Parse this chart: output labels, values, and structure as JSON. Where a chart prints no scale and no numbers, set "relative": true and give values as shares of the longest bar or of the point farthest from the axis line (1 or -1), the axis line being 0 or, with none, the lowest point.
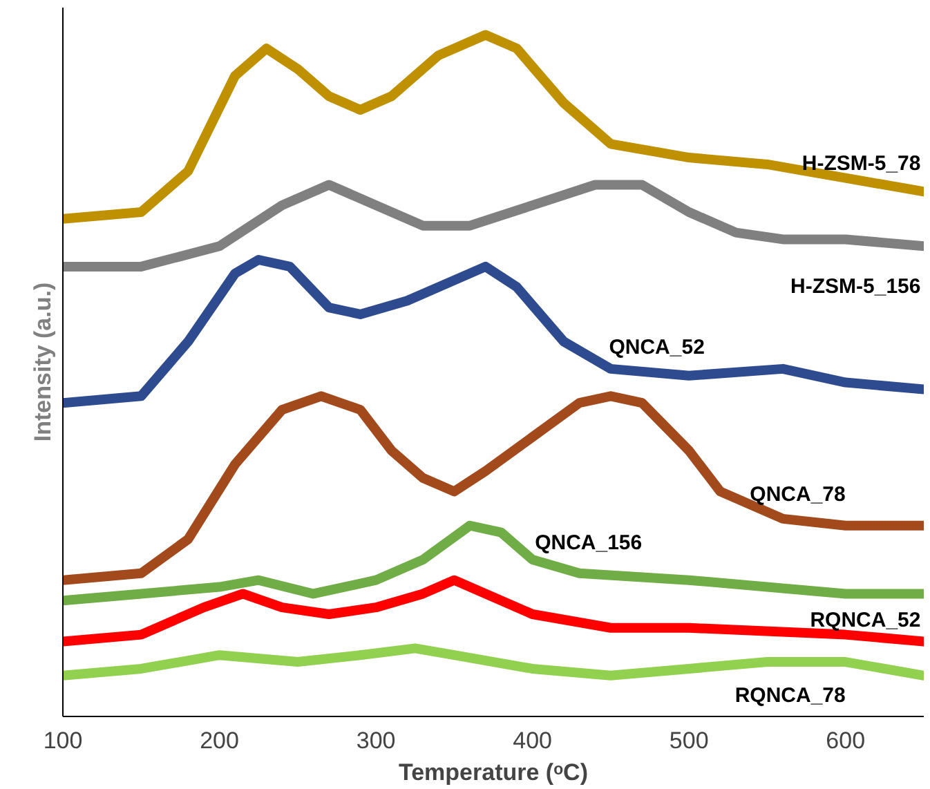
{
  "chart_data": {
    "type": "line",
    "relative": true,
    "xlabel": "Temperature (ᵒC)",
    "ylabel": "Intensity (a.u.)",
    "xlim": [
      100,
      650
    ],
    "xticks": [
      100,
      200,
      300,
      400,
      500,
      600
    ],
    "grid": false,
    "marker": "none",
    "line_style": "solid",
    "series": [
      {
        "name": "H-ZSM-5_78",
        "color": "#bf9000",
        "x": [
          100,
          150,
          180,
          210,
          230,
          250,
          270,
          290,
          310,
          340,
          370,
          390,
          420,
          450,
          500,
          550,
          600,
          650
        ],
        "values": [
          0.73,
          0.74,
          0.8,
          0.94,
          0.98,
          0.95,
          0.91,
          0.89,
          0.91,
          0.97,
          1.0,
          0.98,
          0.9,
          0.84,
          0.82,
          0.81,
          0.79,
          0.77
        ]
      },
      {
        "name": "H-ZSM-5_156",
        "color": "#808080",
        "x": [
          100,
          150,
          200,
          240,
          270,
          300,
          330,
          360,
          400,
          440,
          470,
          500,
          530,
          560,
          600,
          650
        ],
        "values": [
          0.66,
          0.66,
          0.69,
          0.75,
          0.78,
          0.75,
          0.72,
          0.72,
          0.75,
          0.78,
          0.78,
          0.74,
          0.71,
          0.7,
          0.7,
          0.69
        ]
      },
      {
        "name": "QNCA_52",
        "color": "#2f4b8f",
        "x": [
          100,
          150,
          180,
          210,
          225,
          245,
          270,
          290,
          320,
          350,
          370,
          390,
          420,
          450,
          500,
          560,
          600,
          650
        ],
        "values": [
          0.46,
          0.47,
          0.55,
          0.65,
          0.67,
          0.66,
          0.6,
          0.59,
          0.61,
          0.64,
          0.66,
          0.63,
          0.55,
          0.51,
          0.5,
          0.51,
          0.49,
          0.48
        ]
      },
      {
        "name": "QNCA_78",
        "color": "#a34a1c",
        "x": [
          100,
          150,
          180,
          210,
          240,
          265,
          290,
          310,
          330,
          350,
          370,
          400,
          430,
          450,
          470,
          500,
          520,
          560,
          600,
          650
        ],
        "values": [
          0.2,
          0.21,
          0.26,
          0.37,
          0.45,
          0.47,
          0.45,
          0.39,
          0.35,
          0.33,
          0.36,
          0.41,
          0.46,
          0.47,
          0.46,
          0.39,
          0.33,
          0.29,
          0.28,
          0.28
        ]
      },
      {
        "name": "QNCA_156",
        "color": "#70ad47",
        "x": [
          100,
          150,
          200,
          225,
          260,
          300,
          330,
          360,
          380,
          400,
          430,
          500,
          600,
          650
        ],
        "values": [
          0.17,
          0.18,
          0.19,
          0.2,
          0.18,
          0.2,
          0.23,
          0.28,
          0.27,
          0.23,
          0.21,
          0.2,
          0.18,
          0.18
        ]
      },
      {
        "name": "RQNCA_52",
        "color": "#ff0000",
        "x": [
          100,
          150,
          190,
          215,
          240,
          270,
          300,
          330,
          350,
          370,
          400,
          450,
          500,
          600,
          650
        ],
        "values": [
          0.11,
          0.12,
          0.16,
          0.18,
          0.16,
          0.15,
          0.16,
          0.18,
          0.2,
          0.18,
          0.15,
          0.13,
          0.13,
          0.12,
          0.11
        ]
      },
      {
        "name": "RQNCA_78",
        "color": "#92d050",
        "x": [
          100,
          150,
          200,
          250,
          290,
          325,
          350,
          400,
          450,
          500,
          550,
          600,
          650
        ],
        "values": [
          0.06,
          0.07,
          0.09,
          0.08,
          0.09,
          0.1,
          0.09,
          0.07,
          0.06,
          0.07,
          0.08,
          0.08,
          0.06
        ]
      }
    ]
  }
}
